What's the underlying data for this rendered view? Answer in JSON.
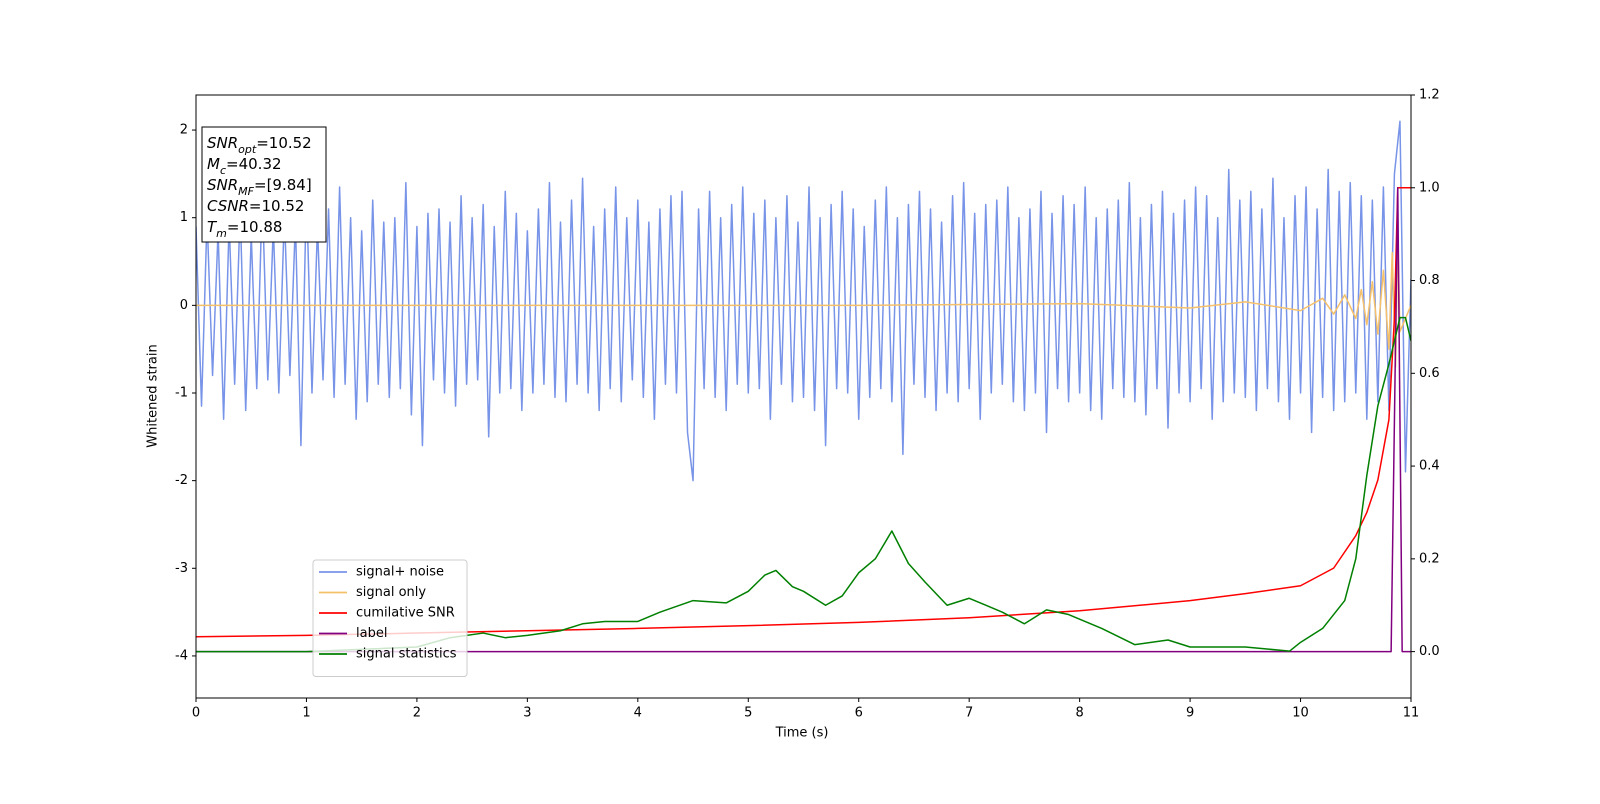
{
  "chart_data": {
    "type": "line",
    "x_label": "Time (s)",
    "y_label": "Whitened strain",
    "xlim": [
      0,
      11
    ],
    "ylim": [
      -4.48,
      2.4
    ],
    "y2lim": [
      -0.1,
      1.2
    ],
    "xticks": [
      0,
      1,
      2,
      3,
      4,
      5,
      6,
      7,
      8,
      9,
      10,
      11
    ],
    "yticks": [
      -4,
      -3,
      -2,
      -1,
      0,
      1,
      2
    ],
    "y2ticks": [
      {
        "value": 0,
        "label": "0.0"
      },
      {
        "value": 0.2,
        "label": "0.2"
      },
      {
        "value": 0.4,
        "label": "0.4"
      },
      {
        "value": 0.6,
        "label": "0.6"
      },
      {
        "value": 0.8,
        "label": "0.8"
      },
      {
        "value": 1,
        "label": "1.0"
      },
      {
        "value": 1.2,
        "label": "1.2"
      }
    ],
    "legend_position": "lower left",
    "annotation": [
      {
        "main": "SNR",
        "sub": "opt",
        "rest": "=10.52"
      },
      {
        "main": "M",
        "sub": "c",
        "rest": "=40.32"
      },
      {
        "main": "SNR",
        "sub": "MF",
        "rest": "=[9.84]"
      },
      {
        "main": "CSNR",
        "rest": "=10.52"
      },
      {
        "main": "T",
        "sub": "m",
        "rest": "=10.88"
      }
    ],
    "series": [
      {
        "name": "signal+ noise",
        "color": "#7894e8",
        "axis": "y",
        "x": [
          0,
          0.05,
          0.1,
          0.15,
          0.2,
          0.25,
          0.3,
          0.35,
          0.4,
          0.45,
          0.5,
          0.55,
          0.6,
          0.65,
          0.7,
          0.75,
          0.8,
          0.85,
          0.9,
          0.95,
          1,
          1.05,
          1.1,
          1.15,
          1.2,
          1.25,
          1.3,
          1.35,
          1.4,
          1.45,
          1.5,
          1.55,
          1.6,
          1.65,
          1.7,
          1.75,
          1.8,
          1.85,
          1.9,
          1.95,
          2,
          2.05,
          2.1,
          2.15,
          2.2,
          2.25,
          2.3,
          2.35,
          2.4,
          2.45,
          2.5,
          2.55,
          2.6,
          2.65,
          2.7,
          2.75,
          2.8,
          2.85,
          2.9,
          2.95,
          3,
          3.05,
          3.1,
          3.15,
          3.2,
          3.25,
          3.3,
          3.35,
          3.4,
          3.45,
          3.5,
          3.55,
          3.6,
          3.65,
          3.7,
          3.75,
          3.8,
          3.85,
          3.9,
          3.95,
          4,
          4.05,
          4.1,
          4.15,
          4.2,
          4.25,
          4.3,
          4.35,
          4.4,
          4.45,
          4.5,
          4.55,
          4.6,
          4.65,
          4.7,
          4.75,
          4.8,
          4.85,
          4.9,
          4.95,
          5,
          5.05,
          5.1,
          5.15,
          5.2,
          5.25,
          5.3,
          5.35,
          5.4,
          5.45,
          5.5,
          5.55,
          5.6,
          5.65,
          5.7,
          5.75,
          5.8,
          5.85,
          5.9,
          5.95,
          6,
          6.05,
          6.1,
          6.15,
          6.2,
          6.25,
          6.3,
          6.35,
          6.4,
          6.45,
          6.5,
          6.55,
          6.6,
          6.65,
          6.7,
          6.75,
          6.8,
          6.85,
          6.9,
          6.95,
          7,
          7.05,
          7.1,
          7.15,
          7.2,
          7.25,
          7.3,
          7.35,
          7.4,
          7.45,
          7.5,
          7.55,
          7.6,
          7.65,
          7.7,
          7.75,
          7.8,
          7.85,
          7.9,
          7.95,
          8,
          8.05,
          8.1,
          8.15,
          8.2,
          8.25,
          8.3,
          8.35,
          8.4,
          8.45,
          8.5,
          8.55,
          8.6,
          8.65,
          8.7,
          8.75,
          8.8,
          8.85,
          8.9,
          8.95,
          9,
          9.05,
          9.1,
          9.15,
          9.2,
          9.25,
          9.3,
          9.35,
          9.4,
          9.45,
          9.5,
          9.55,
          9.6,
          9.65,
          9.7,
          9.75,
          9.8,
          9.85,
          9.9,
          9.95,
          10,
          10.05,
          10.1,
          10.15,
          10.2,
          10.25,
          10.3,
          10.35,
          10.4,
          10.45,
          10.5,
          10.55,
          10.6,
          10.65,
          10.7,
          10.75,
          10.8,
          10.85,
          10.9,
          10.95,
          11
        ],
        "values": [
          0.9,
          -1.15,
          1.0,
          -0.8,
          0.85,
          -1.3,
          0.95,
          -0.9,
          1.1,
          -1.2,
          0.8,
          -0.95,
          1.25,
          -0.85,
          0.9,
          -1.0,
          1.05,
          -0.8,
          0.95,
          -1.6,
          1.3,
          -1.0,
          0.9,
          -0.85,
          1.1,
          -1.05,
          1.35,
          -0.9,
          1.0,
          -1.3,
          0.85,
          -1.1,
          1.2,
          -0.9,
          0.95,
          -1.05,
          1.0,
          -0.95,
          1.4,
          -1.25,
          0.9,
          -1.6,
          1.05,
          -0.85,
          1.1,
          -1.0,
          0.95,
          -1.15,
          1.25,
          -0.9,
          1.0,
          -0.85,
          1.15,
          -1.5,
          0.9,
          -1.0,
          1.3,
          -0.95,
          1.05,
          -1.2,
          0.85,
          -1.0,
          1.1,
          -0.9,
          1.4,
          -1.05,
          0.95,
          -1.1,
          1.2,
          -0.9,
          1.45,
          -1.0,
          0.9,
          -1.2,
          1.1,
          -0.95,
          1.35,
          -1.1,
          1.0,
          -0.85,
          1.2,
          -1.05,
          0.95,
          -1.3,
          1.1,
          -0.9,
          1.25,
          -1.0,
          1.3,
          -1.45,
          -2.0,
          1.1,
          -0.95,
          1.3,
          -1.05,
          1.0,
          -1.2,
          1.15,
          -0.9,
          1.35,
          -1.0,
          1.05,
          -0.95,
          1.2,
          -1.3,
          1.0,
          -0.9,
          1.25,
          -1.1,
          0.95,
          -1.05,
          1.35,
          -1.2,
          1.0,
          -1.6,
          1.15,
          -0.95,
          1.3,
          -1.0,
          1.1,
          -1.3,
          0.9,
          -1.05,
          1.2,
          -0.95,
          1.35,
          -1.1,
          1.0,
          -1.7,
          1.15,
          -0.9,
          1.3,
          -1.05,
          1.1,
          -1.2,
          0.95,
          -1.0,
          1.25,
          -1.1,
          1.4,
          -0.95,
          1.05,
          -1.3,
          1.15,
          -1.0,
          1.2,
          -0.9,
          1.35,
          -1.1,
          1.0,
          -1.2,
          1.1,
          -1.0,
          1.3,
          -1.45,
          1.05,
          -0.95,
          1.25,
          -1.1,
          1.15,
          -1.0,
          1.35,
          -1.2,
          1.0,
          -1.3,
          1.1,
          -0.95,
          1.2,
          -1.05,
          1.4,
          -1.1,
          1.0,
          -1.25,
          1.15,
          -0.95,
          1.3,
          -1.4,
          1.05,
          -1.0,
          1.2,
          -1.1,
          1.35,
          -0.95,
          1.25,
          -1.3,
          1.0,
          -1.1,
          1.55,
          -1.0,
          1.2,
          -1.05,
          1.3,
          -1.2,
          1.1,
          -0.95,
          1.45,
          -1.1,
          1.0,
          -1.3,
          1.25,
          -1.0,
          1.35,
          -1.45,
          1.1,
          -1.05,
          1.55,
          -1.2,
          1.3,
          -1.1,
          1.4,
          -1.0,
          1.25,
          -1.3,
          1.2,
          -1.1,
          1.35,
          -1.2,
          1.5,
          2.1,
          -1.9,
          0.3
        ]
      },
      {
        "name": "signal only",
        "color": "#f5c06a",
        "axis": "y",
        "x": [
          0,
          2,
          4,
          6,
          8,
          9,
          9.5,
          10,
          10.2,
          10.3,
          10.4,
          10.5,
          10.55,
          10.6,
          10.65,
          10.7,
          10.75,
          10.8,
          10.83,
          10.86,
          10.88,
          10.9,
          11
        ],
        "values": [
          0,
          0,
          0,
          0,
          0.02,
          -0.03,
          0.04,
          -0.06,
          0.08,
          -0.1,
          0.12,
          -0.15,
          0.18,
          -0.22,
          0.27,
          -0.33,
          0.4,
          -0.5,
          0.6,
          -0.7,
          0.8,
          -0.3,
          0
        ]
      },
      {
        "name": "cumilative SNR",
        "color": "#ff0000",
        "axis": "y2",
        "x": [
          0,
          1,
          2,
          3,
          4,
          5,
          6,
          7,
          8,
          9,
          9.5,
          10,
          10.3,
          10.5,
          10.6,
          10.7,
          10.8,
          10.85,
          10.88,
          10.9,
          11
        ],
        "values": [
          0.032,
          0.035,
          0.04,
          0.045,
          0.05,
          0.056,
          0.063,
          0.073,
          0.088,
          0.11,
          0.125,
          0.142,
          0.18,
          0.25,
          0.3,
          0.37,
          0.5,
          0.72,
          1.0,
          1.0,
          1.0
        ]
      },
      {
        "name": "label",
        "color": "#800080",
        "axis": "y2",
        "x": [
          0,
          10.82,
          10.88,
          10.92,
          11
        ],
        "values": [
          0,
          0,
          1,
          0,
          0
        ]
      },
      {
        "name": "signal statistics",
        "color": "#008000",
        "axis": "y2",
        "x": [
          0,
          1,
          2,
          2.3,
          2.6,
          2.8,
          3,
          3.3,
          3.5,
          3.7,
          4,
          4.2,
          4.5,
          4.8,
          5,
          5.15,
          5.25,
          5.4,
          5.5,
          5.7,
          5.85,
          6,
          6.15,
          6.3,
          6.45,
          6.6,
          6.8,
          7,
          7.15,
          7.3,
          7.5,
          7.6,
          7.7,
          7.9,
          8,
          8.2,
          8.5,
          8.8,
          9,
          9.5,
          9.9,
          10,
          10.2,
          10.4,
          10.5,
          10.6,
          10.7,
          10.8,
          10.9,
          10.95,
          11
        ],
        "values": [
          0,
          0,
          0.01,
          0.03,
          0.04,
          0.03,
          0.035,
          0.045,
          0.06,
          0.065,
          0.065,
          0.085,
          0.11,
          0.105,
          0.13,
          0.165,
          0.175,
          0.14,
          0.13,
          0.1,
          0.12,
          0.17,
          0.2,
          0.26,
          0.19,
          0.15,
          0.1,
          0.115,
          0.1,
          0.085,
          0.06,
          0.075,
          0.09,
          0.08,
          0.07,
          0.05,
          0.015,
          0.025,
          0.01,
          0.01,
          0.001,
          0.02,
          0.05,
          0.11,
          0.2,
          0.38,
          0.53,
          0.62,
          0.72,
          0.72,
          0.67
        ]
      }
    ]
  }
}
